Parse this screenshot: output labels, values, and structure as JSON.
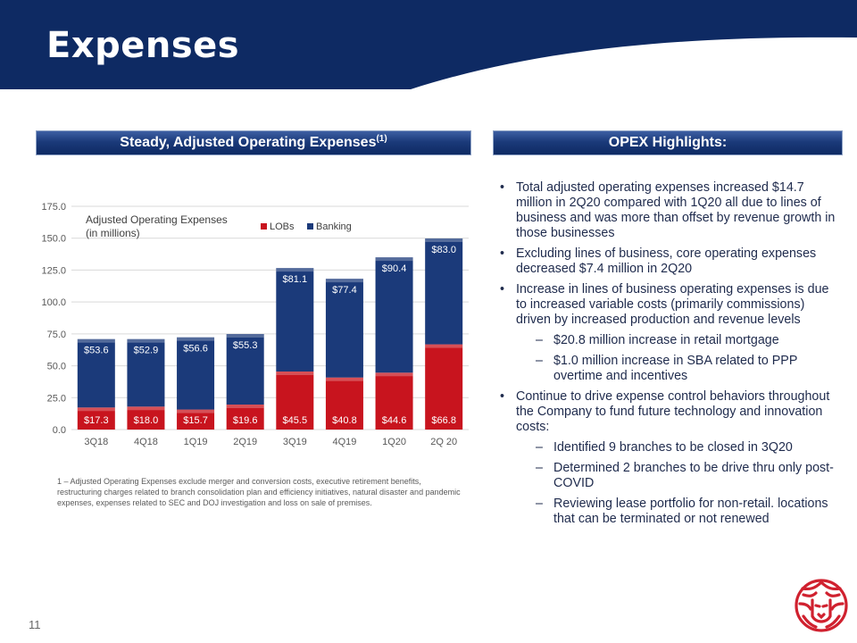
{
  "slide": {
    "title": "Expenses",
    "page_number": "11"
  },
  "left_section": {
    "heading": "Steady, Adjusted Operating Expenses",
    "heading_sup": "(1)",
    "footnote": "1 – Adjusted Operating Expenses exclude merger and conversion costs, executive retirement benefits, restructuring charges related to branch consolidation plan and efficiency initiatives, natural disaster and pandemic expenses, expenses related to SEC and DOJ investigation and loss on sale of premises."
  },
  "right_section": {
    "heading": "OPEX Highlights:",
    "items": [
      {
        "level": 1,
        "marker": "•",
        "text": "Total adjusted operating expenses increased $14.7 million in 2Q20 compared with 1Q20 all due to lines of business and was more than offset by revenue growth in those businesses"
      },
      {
        "level": 1,
        "marker": "•",
        "text": "Excluding lines of business, core operating expenses decreased $7.4 million in 2Q20"
      },
      {
        "level": 1,
        "marker": "•",
        "text": "Increase in lines of business operating expenses is due to increased variable costs (primarily commissions) driven by increased production and revenue levels"
      },
      {
        "level": 2,
        "marker": "–",
        "text": "$20.8 million increase in retail mortgage"
      },
      {
        "level": 2,
        "marker": "–",
        "text": "$1.0 million increase in SBA related to PPP overtime and incentives"
      },
      {
        "level": 1,
        "marker": "•",
        "text": "Continue to drive expense control behaviors throughout the Company to fund future technology and innovation costs:"
      },
      {
        "level": 2,
        "marker": "–",
        "text": "Identified 9 branches to be closed in 3Q20"
      },
      {
        "level": 2,
        "marker": "–",
        "text": "Determined 2 branches to be drive thru only post-COVID"
      },
      {
        "level": 2,
        "marker": "–",
        "text": "Reviewing lease portfolio for non-retail. locations that can be terminated or not renewed"
      }
    ]
  },
  "colors": {
    "navy": "#0e2a63",
    "lobs_red": "#c8141e",
    "banking_blue": "#1b3a7a",
    "logo_red": "#d0212f"
  },
  "logo": {
    "icon": "lion-head-icon"
  },
  "chart_data": {
    "type": "bar",
    "stacked": true,
    "title": "Adjusted Operating Expenses",
    "subtitle": "(in millions)",
    "categories": [
      "3Q18",
      "4Q18",
      "1Q19",
      "2Q19",
      "3Q19",
      "4Q19",
      "1Q20",
      "2Q 20"
    ],
    "series": [
      {
        "name": "LOBs",
        "color": "#c8141e",
        "values": [
          17.3,
          18.0,
          15.7,
          19.6,
          45.5,
          40.8,
          44.6,
          66.8
        ],
        "labels": [
          "$17.3",
          "$18.0",
          "$15.7",
          "$19.6",
          "$45.5",
          "$40.8",
          "$44.6",
          "$66.8"
        ]
      },
      {
        "name": "Banking",
        "color": "#1b3a7a",
        "values": [
          53.6,
          52.9,
          56.6,
          55.3,
          81.1,
          77.4,
          90.4,
          83.0
        ],
        "labels": [
          "$53.6",
          "$52.9",
          "$56.6",
          "$55.3",
          "$81.1",
          "$77.4",
          "$90.4",
          "$83.0"
        ]
      }
    ],
    "ylim": [
      0,
      175
    ],
    "yticks": [
      "0.0",
      "25.0",
      "50.0",
      "75.0",
      "100.0",
      "125.0",
      "150.0",
      "175.0"
    ],
    "grid": true,
    "legend_position": "top"
  }
}
